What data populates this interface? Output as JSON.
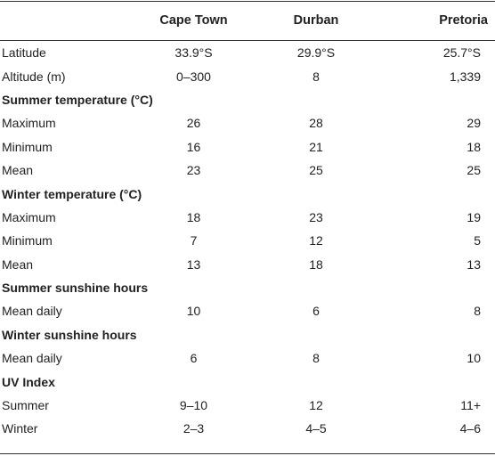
{
  "header": {
    "c1": "Cape Town",
    "c2": "Durban",
    "c3": "Pretoria"
  },
  "rows": [
    {
      "type": "data",
      "label": "Latitude",
      "v": [
        "33.9°S",
        "29.9°S",
        "25.7°S"
      ]
    },
    {
      "type": "data",
      "label": "Altitude (m)",
      "v": [
        "0–300",
        "8",
        "1,339"
      ]
    },
    {
      "type": "section",
      "label": "Summer temperature (°C)"
    },
    {
      "type": "data",
      "label": "Maximum",
      "v": [
        "26",
        "28",
        "29"
      ]
    },
    {
      "type": "data",
      "label": "Minimum",
      "v": [
        "16",
        "21",
        "18"
      ]
    },
    {
      "type": "data",
      "label": "Mean",
      "v": [
        "23",
        "25",
        "25"
      ]
    },
    {
      "type": "section",
      "label": "Winter temperature (°C)"
    },
    {
      "type": "data",
      "label": "Maximum",
      "v": [
        "18",
        "23",
        "19"
      ]
    },
    {
      "type": "data",
      "label": "Minimum",
      "v": [
        "7",
        "12",
        "5"
      ]
    },
    {
      "type": "data",
      "label": "Mean",
      "v": [
        "13",
        "18",
        "13"
      ]
    },
    {
      "type": "section",
      "label": "Summer sunshine hours"
    },
    {
      "type": "data",
      "label": "Mean daily",
      "v": [
        "10",
        "6",
        "8"
      ]
    },
    {
      "type": "section",
      "label": "Winter sunshine hours"
    },
    {
      "type": "data",
      "label": "Mean daily",
      "v": [
        "6",
        "8",
        "10"
      ]
    },
    {
      "type": "section",
      "label": "UV Index"
    },
    {
      "type": "data",
      "label": "Summer",
      "v": [
        "9–10",
        "12",
        "11+"
      ]
    },
    {
      "type": "data",
      "label": "Winter",
      "v": [
        "2–3",
        "4–5",
        "4–6"
      ]
    }
  ]
}
